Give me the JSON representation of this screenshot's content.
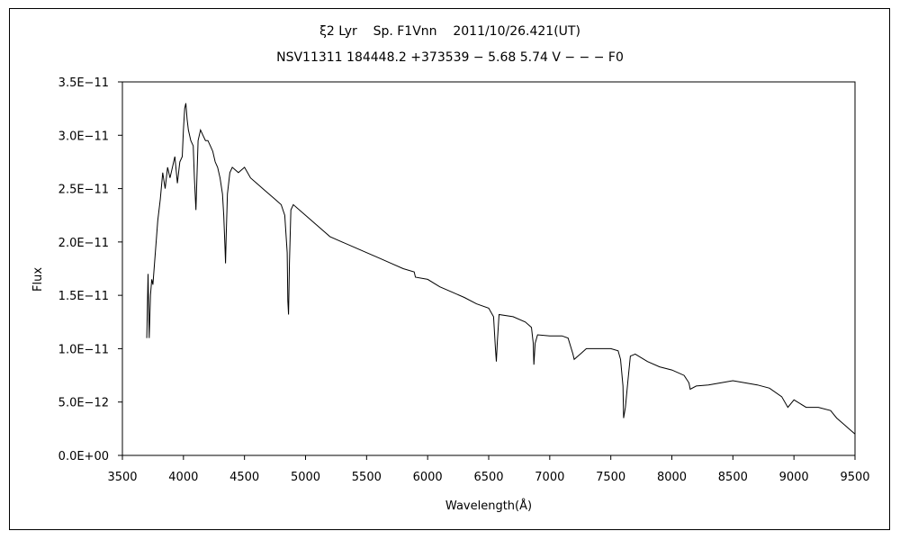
{
  "chart_data": {
    "type": "line",
    "title": "ξ2 Lyr    Sp. F1Vnn    2011/10/26.421(UT)",
    "subtitle": "NSV11311 184448.2 +373539 − 5.68 5.74 V − − − F0",
    "xlabel": "Wavelength(Å)",
    "ylabel": "Flux",
    "xlim": [
      3500,
      9500
    ],
    "ylim": [
      0,
      3.5e-11
    ],
    "x_ticks": [
      3500,
      4000,
      4500,
      5000,
      5500,
      6000,
      6500,
      7000,
      7500,
      8000,
      8500,
      9000,
      9500
    ],
    "x_tick_labels": [
      "3500",
      "4000",
      "4500",
      "5000",
      "5500",
      "6000",
      "6500",
      "7000",
      "7500",
      "8000",
      "8500",
      "9000",
      "9500"
    ],
    "y_ticks": [
      0,
      5e-12,
      1e-11,
      1.5e-11,
      2e-11,
      2.5e-11,
      3e-11,
      3.5e-11
    ],
    "y_tick_labels": [
      "0.0E+00",
      "5.0E−12",
      "1.0E−11",
      "1.5E−11",
      "2.0E−11",
      "2.5E−11",
      "3.0E−11",
      "3.5E−11"
    ],
    "grid": false,
    "legend": "none",
    "line_color": "#000000",
    "series": [
      {
        "x": [
          3700,
          3710,
          3720,
          3730,
          3740,
          3750,
          3770,
          3790,
          3810,
          3830,
          3850,
          3870,
          3890,
          3910,
          3930,
          3950,
          3970,
          3990,
          4000,
          4010,
          4020,
          4030,
          4040,
          4060,
          4080,
          4090,
          4100,
          4102,
          4110,
          4120,
          4140,
          4160,
          4180,
          4200,
          4220,
          4240,
          4260,
          4280,
          4300,
          4320,
          4330,
          4340,
          4345,
          4350,
          4360,
          4380,
          4400,
          4450,
          4500,
          4550,
          4600,
          4650,
          4700,
          4750,
          4800,
          4830,
          4850,
          4855,
          4861,
          4868,
          4880,
          4900,
          5000,
          5100,
          5200,
          5300,
          5400,
          5500,
          5600,
          5700,
          5800,
          5890,
          5900,
          6000,
          6100,
          6200,
          6300,
          6400,
          6500,
          6540,
          6555,
          6563,
          6570,
          6585,
          6700,
          6800,
          6850,
          6865,
          6870,
          6880,
          6900,
          7000,
          7100,
          7150,
          7190,
          7200,
          7250,
          7300,
          7400,
          7500,
          7560,
          7580,
          7600,
          7605,
          7620,
          7640,
          7660,
          7700,
          7800,
          7900,
          8000,
          8100,
          8140,
          8150,
          8200,
          8300,
          8400,
          8500,
          8600,
          8700,
          8800,
          8900,
          8950,
          9000,
          9100,
          9200,
          9300,
          9350,
          9400,
          9450,
          9500
        ],
        "y": [
          1.1e-11,
          1.7e-11,
          1.1e-11,
          1.5e-11,
          1.65e-11,
          1.6e-11,
          1.9e-11,
          2.2e-11,
          2.4e-11,
          2.65e-11,
          2.5e-11,
          2.7e-11,
          2.6e-11,
          2.7e-11,
          2.8e-11,
          2.55e-11,
          2.75e-11,
          2.8e-11,
          3.05e-11,
          3.25e-11,
          3.3e-11,
          3.15e-11,
          3.05e-11,
          2.95e-11,
          2.9e-11,
          2.6e-11,
          2.35e-11,
          2.3e-11,
          2.6e-11,
          2.95e-11,
          3.05e-11,
          3e-11,
          2.95e-11,
          2.95e-11,
          2.9e-11,
          2.85e-11,
          2.75e-11,
          2.7e-11,
          2.6e-11,
          2.45e-11,
          2.25e-11,
          1.95e-11,
          1.8e-11,
          2.05e-11,
          2.45e-11,
          2.65e-11,
          2.7e-11,
          2.65e-11,
          2.7e-11,
          2.6e-11,
          2.55e-11,
          2.5e-11,
          2.45e-11,
          2.4e-11,
          2.35e-11,
          2.25e-11,
          1.9e-11,
          1.45e-11,
          1.32e-11,
          1.8e-11,
          2.3e-11,
          2.35e-11,
          2.25e-11,
          2.15e-11,
          2.05e-11,
          2e-11,
          1.95e-11,
          1.9e-11,
          1.85e-11,
          1.8e-11,
          1.75e-11,
          1.72e-11,
          1.67e-11,
          1.65e-11,
          1.58e-11,
          1.53e-11,
          1.48e-11,
          1.42e-11,
          1.38e-11,
          1.3e-11,
          1e-11,
          8.8e-12,
          1.05e-11,
          1.32e-11,
          1.3e-11,
          1.25e-11,
          1.2e-11,
          1.05e-11,
          8.5e-12,
          1.05e-11,
          1.13e-11,
          1.12e-11,
          1.12e-11,
          1.1e-11,
          9.5e-12,
          9e-12,
          9.5e-12,
          1e-11,
          1e-11,
          1e-11,
          9.8e-12,
          9e-12,
          6.5e-12,
          3.5e-12,
          4.5e-12,
          7e-12,
          9.3e-12,
          9.5e-12,
          8.8e-12,
          8.3e-12,
          8e-12,
          7.5e-12,
          6.8e-12,
          6.2e-12,
          6.5e-12,
          6.6e-12,
          6.8e-12,
          7e-12,
          6.8e-12,
          6.6e-12,
          6.3e-12,
          5.5e-12,
          4.5e-12,
          5.2e-12,
          4.5e-12,
          4.5e-12,
          4.2e-12,
          3.5e-12,
          3e-12,
          2.5e-12,
          2e-12
        ]
      }
    ]
  }
}
